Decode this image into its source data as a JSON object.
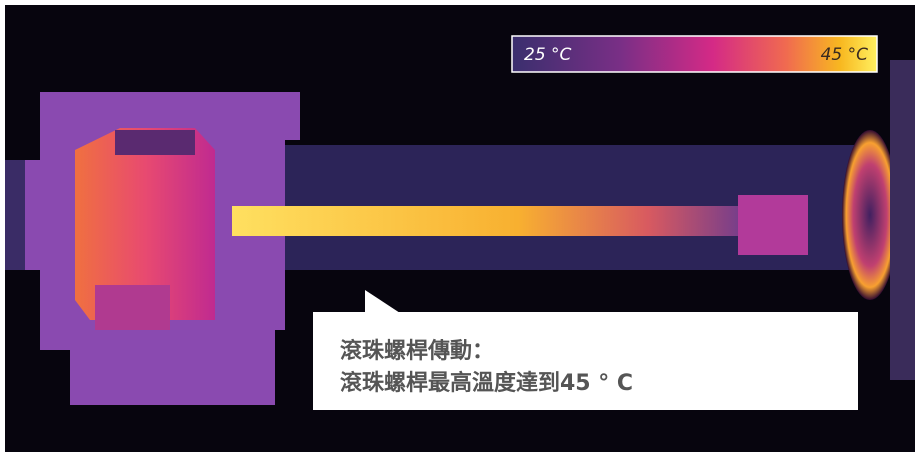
{
  "colorbar": {
    "min_label": "25 °C",
    "max_label": "45 °C"
  },
  "callout": {
    "title": "滾珠螺桿傳動：",
    "text": "滾珠螺桿最高溫度達到45 ° C"
  }
}
